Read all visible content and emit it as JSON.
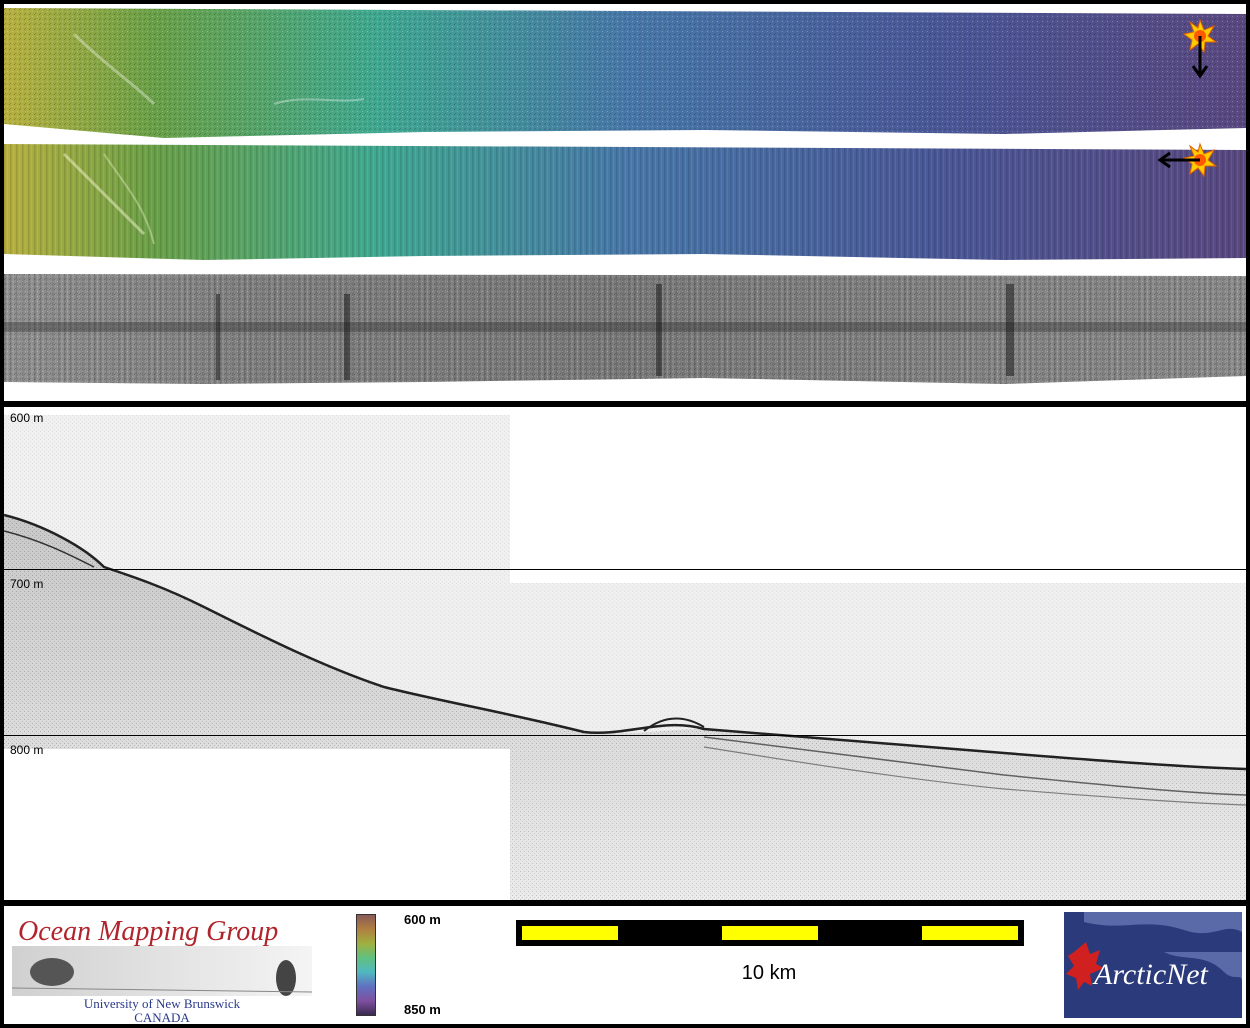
{
  "swath": {
    "strips": [
      {
        "name": "sun-illuminated-bathymetry-north"
      },
      {
        "name": "sun-illuminated-bathymetry-west"
      },
      {
        "name": "backscatter-mosaic"
      }
    ],
    "colors": {
      "shallow": "#c8b040",
      "mid": "#40a8a0",
      "deep": "#604878"
    }
  },
  "profile": {
    "depth_labels": [
      "600 m",
      "700 m",
      "800 m"
    ]
  },
  "legend": {
    "omg_title": "Ocean Mapping Group",
    "omg_line1": "University of New Brunswick",
    "omg_line2": "CANADA",
    "colorbar_top": "600 m",
    "colorbar_bottom": "850 m",
    "scale_label": "10 km",
    "arcticnet_label": "ArcticNet",
    "scale_colors": {
      "bar": "#000000",
      "segment": "#ffff00"
    }
  }
}
